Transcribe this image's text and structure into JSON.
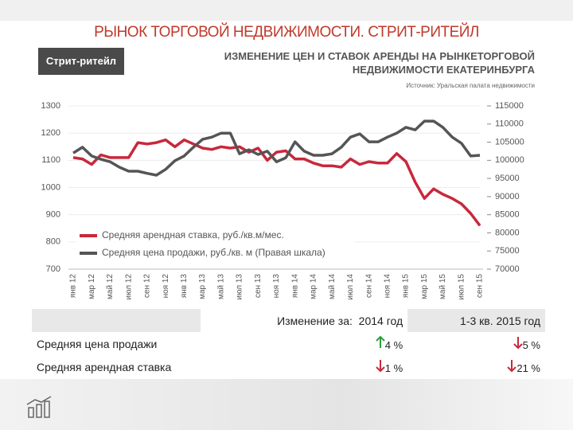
{
  "header": {
    "title": "РЫНОК ТОРГОВОЙ НЕДВИЖИМОСТИ. СТРИТ-РИТЕЙЛ"
  },
  "tag": "Стрит-ритейл",
  "chart_data": {
    "type": "line",
    "title": "ИЗМЕНЕНИЕ ЦЕН И СТАВОК АРЕНДЫ НА РЫНКЕТОРГОВОЙ НЕДВИЖИМОСТИ ЕКАТЕРИНБУРГА",
    "source": "Источник: Уральская палата недвижимости",
    "categories": [
      "янв 12",
      null,
      "мар 12",
      null,
      "май 12",
      null,
      "июл 12",
      null,
      "сен 12",
      null,
      "ноя 12",
      null,
      "янв 13",
      null,
      "мар 13",
      null,
      "май 13",
      null,
      "июл 13",
      null,
      "сен 13",
      null,
      "ноя 13",
      null,
      "янв 14",
      null,
      "мар 14",
      null,
      "май 14",
      null,
      "июл 14",
      null,
      "сен 14",
      null,
      "ноя 14",
      null,
      "янв 15",
      null,
      "мар 15",
      null,
      "май 15",
      null,
      "июл 15",
      null,
      "сен 15"
    ],
    "series": [
      {
        "name": "Средняя арендная ставка, руб./кв.м/мес.",
        "color": "#c8283c",
        "axis": "y",
        "values": [
          1110,
          1105,
          1085,
          1120,
          1110,
          1110,
          1110,
          1165,
          1160,
          1165,
          1175,
          1150,
          1175,
          1160,
          1145,
          1140,
          1150,
          1145,
          1150,
          1130,
          1145,
          1100,
          1130,
          1135,
          1105,
          1105,
          1090,
          1080,
          1080,
          1075,
          1105,
          1085,
          1095,
          1090,
          1090,
          1125,
          1095,
          1020,
          960,
          995,
          975,
          960,
          940,
          905,
          860
        ]
      },
      {
        "name": "Средняя цена продажи, руб./кв. м (Правая шкала)",
        "color": "#555555",
        "axis": "y2",
        "values": [
          102000,
          103600,
          101200,
          100300,
          99600,
          98100,
          97000,
          97000,
          96400,
          95900,
          97500,
          99900,
          101200,
          103600,
          105800,
          106400,
          107500,
          107500,
          101800,
          102900,
          101600,
          102500,
          99600,
          100700,
          105100,
          102500,
          101400,
          101400,
          101800,
          103600,
          106400,
          107300,
          105100,
          105100,
          106400,
          107500,
          109100,
          108400,
          110800,
          110800,
          109100,
          106400,
          104700,
          101200,
          101400
        ]
      }
    ],
    "ylim": [
      700,
      1300
    ],
    "yticks": [
      700,
      800,
      900,
      1000,
      1100,
      1200,
      1300
    ],
    "y2lim": [
      70000,
      115000
    ],
    "y2ticks": [
      70000,
      75000,
      80000,
      85000,
      90000,
      95000,
      100000,
      105000,
      110000,
      115000
    ],
    "grid": true,
    "legend": "lower left"
  },
  "table": {
    "header": [
      "Изменение за:",
      "2014 год",
      "1-3 кв. 2015 год"
    ],
    "rows": [
      [
        "Средняя цена продажи",
        "4 %",
        "5 %"
      ],
      [
        "Средняя арендная ставка",
        "1 %",
        "21 %"
      ]
    ]
  }
}
